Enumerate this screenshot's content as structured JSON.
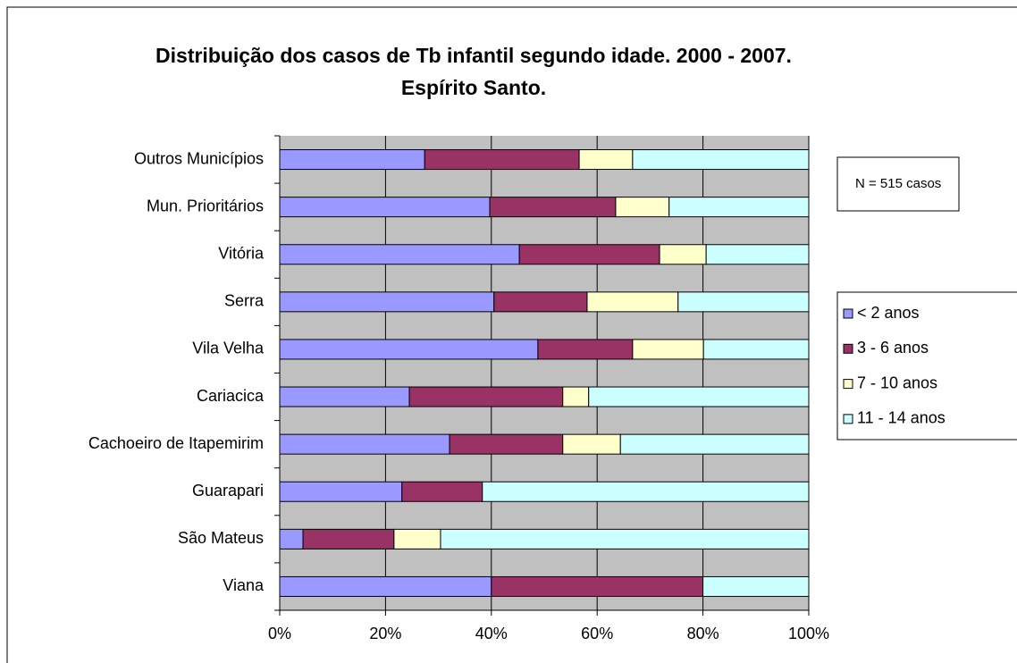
{
  "chart_data": {
    "type": "stacked_bar_horizontal",
    "title": "Distribuição dos casos de Tb infantil segundo idade. 2000 - 2007. Espírito Santo.",
    "annotation": "N = 515 casos",
    "categories": [
      "Outros Municípios",
      "Mun. Prioritários",
      "Vitória",
      "Serra",
      "Vila Velha",
      "Cariacica",
      "Cachoeiro de Itapemirim",
      "Guarapari",
      "São Mateus",
      "Viana"
    ],
    "series": [
      {
        "name": "< 2 anos",
        "color": "#9999ff",
        "values": [
          27.4,
          39.7,
          45.3,
          40.5,
          48.8,
          24.5,
          32.1,
          23.1,
          4.4,
          40
        ]
      },
      {
        "name": "3 - 6 anos",
        "color": "#993366",
        "values": [
          29.2,
          23.8,
          26.5,
          17.6,
          17.9,
          29.0,
          21.4,
          15.2,
          17.2,
          40
        ]
      },
      {
        "name": "7 - 10 anos",
        "color": "#ffffcc",
        "values": [
          10.1,
          10.1,
          8.8,
          17.2,
          13.4,
          4.9,
          10.9,
          0,
          8.8,
          0
        ]
      },
      {
        "name": "11 - 14 anos",
        "color": "#ccffff",
        "values": [
          33.3,
          26.4,
          19.4,
          24.7,
          19.9,
          41.6,
          35.6,
          61.7,
          69.6,
          20
        ]
      }
    ],
    "xlim": [
      0,
      100
    ],
    "xticks": [
      {
        "value": 0,
        "label": "0%"
      },
      {
        "value": 20,
        "label": "20%"
      },
      {
        "value": 40,
        "label": "40%"
      },
      {
        "value": 60,
        "label": "60%"
      },
      {
        "value": 80,
        "label": "80%"
      },
      {
        "value": 100,
        "label": "100%"
      }
    ],
    "grid": true
  }
}
